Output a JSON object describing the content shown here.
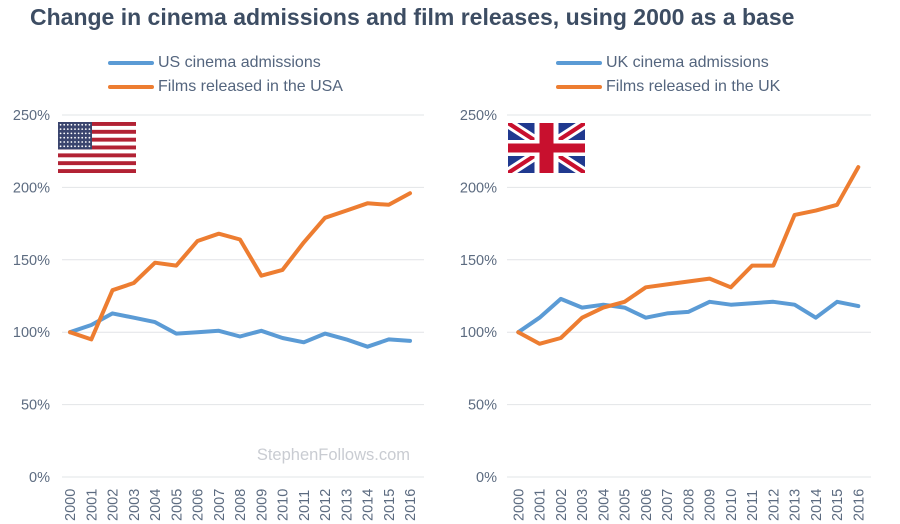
{
  "page": {
    "title": "Change in cinema admissions and film releases, using 2000 as a base"
  },
  "colors": {
    "admissions": "#5B9BD5",
    "releases": "#ED7D31",
    "title_text": "#3D4D63",
    "axis_text": "#5C6B80",
    "grid": "#E2E4E7",
    "watermark_text": "#C9CCD2"
  },
  "chart_data": [
    {
      "type": "line",
      "country": "USA",
      "flag_icon": "us-flag-icon",
      "watermark": "StephenFollows.com",
      "grid": true,
      "legend_position": "top",
      "ylim": [
        0,
        250
      ],
      "ytick_step": 50,
      "ytick_suffix": "%",
      "x": [
        "2000",
        "2001",
        "2002",
        "2003",
        "2004",
        "2005",
        "2006",
        "2007",
        "2008",
        "2009",
        "2010",
        "2011",
        "2012",
        "2013",
        "2014",
        "2015",
        "2016"
      ],
      "series": [
        {
          "name": "US cinema admissions",
          "color_key": "admissions",
          "values": [
            100,
            105,
            113,
            110,
            107,
            99,
            100,
            101,
            97,
            101,
            96,
            93,
            99,
            95,
            90,
            95,
            94
          ]
        },
        {
          "name": "Films released in the USA",
          "color_key": "releases",
          "values": [
            100,
            95,
            129,
            134,
            148,
            146,
            163,
            168,
            164,
            139,
            143,
            162,
            179,
            184,
            189,
            188,
            196
          ]
        }
      ]
    },
    {
      "type": "line",
      "country": "UK",
      "flag_icon": "uk-flag-icon",
      "grid": true,
      "legend_position": "top",
      "ylim": [
        0,
        250
      ],
      "ytick_step": 50,
      "ytick_suffix": "%",
      "x": [
        "2000",
        "2001",
        "2002",
        "2003",
        "2004",
        "2005",
        "2006",
        "2007",
        "2008",
        "2009",
        "2010",
        "2011",
        "2012",
        "2013",
        "2014",
        "2015",
        "2016"
      ],
      "series": [
        {
          "name": "UK cinema admissions",
          "color_key": "admissions",
          "values": [
            100,
            110,
            123,
            117,
            119,
            117,
            110,
            113,
            114,
            121,
            119,
            120,
            121,
            119,
            110,
            121,
            118
          ]
        },
        {
          "name": "Films released in the UK",
          "color_key": "releases",
          "values": [
            100,
            92,
            96,
            110,
            117,
            121,
            131,
            133,
            135,
            137,
            131,
            146,
            146,
            181,
            184,
            188,
            214
          ]
        }
      ]
    }
  ]
}
